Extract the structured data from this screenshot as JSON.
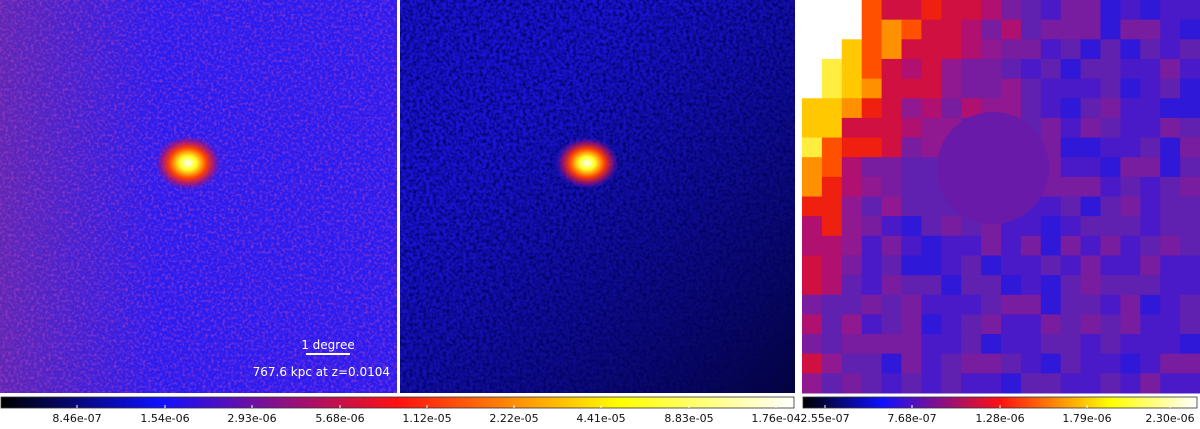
{
  "scale_bar": {
    "length": "1 degree",
    "distance": "767.6 kpc at z=0.0104"
  },
  "colorbars": [
    {
      "ticks": [
        "8.46e-07",
        "1.54e-06",
        "2.93e-06",
        "5.68e-06",
        "1.12e-05",
        "2.22e-05",
        "4.41e-05",
        "8.83e-05",
        "1.76e-04"
      ]
    },
    {
      "ticks": [
        "2.55e-07",
        "7.68e-07",
        "1.28e-06",
        "1.79e-06",
        "2.30e-06"
      ]
    }
  ]
}
